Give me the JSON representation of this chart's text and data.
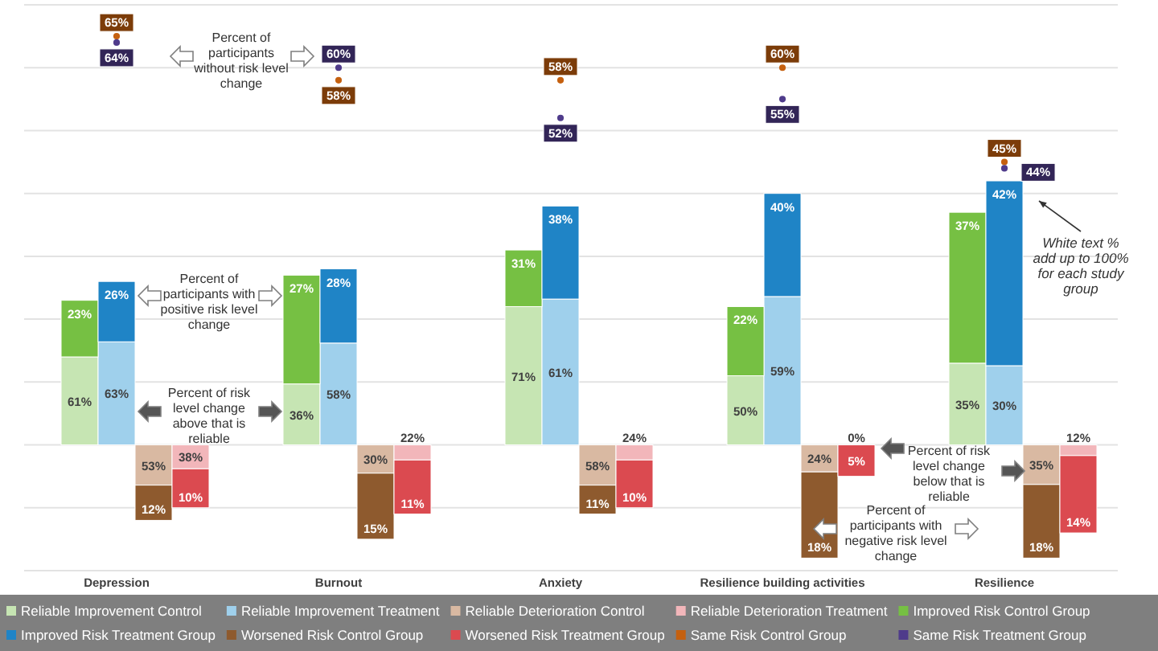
{
  "chart_data": {
    "type": "bar",
    "stacked": true,
    "categories": [
      null,
      null,
      "Depression",
      null,
      null,
      null,
      null,
      null,
      "Burnout",
      null,
      null,
      null,
      null,
      null,
      "Anxiety",
      null,
      null,
      null,
      null,
      null,
      "Resilience building activities",
      null,
      null,
      null,
      null,
      null,
      "Resilience",
      null,
      null,
      null
    ],
    "ylim": [
      -20,
      70
    ],
    "yticks": [
      {
        "value": -20,
        "label": null
      },
      {
        "value": -10,
        "label": null
      },
      {
        "value": 0,
        "label": null
      },
      {
        "value": 10,
        "label": null
      },
      {
        "value": 20,
        "label": null
      },
      {
        "value": 30,
        "label": null
      },
      {
        "value": 40,
        "label": null
      },
      {
        "value": 50,
        "label": null
      },
      {
        "value": 60,
        "label": null
      },
      {
        "value": 70,
        "label": null
      }
    ],
    "grid": "y",
    "legend": "bottom",
    "marker": "circle",
    "series": [
      {
        "name": "Reliable Improvement Control",
        "color": "#c6e5b3",
        "values": [
          null,
          14.0,
          null,
          null,
          null,
          null,
          null,
          9.7,
          null,
          null,
          null,
          null,
          null,
          22.0,
          null,
          null,
          null,
          null,
          null,
          11.0,
          null,
          null,
          null,
          null,
          null,
          13.0,
          null,
          null,
          null,
          null
        ]
      },
      {
        "name": "Reliable Improvement Treatment",
        "color": "#9fd0ec",
        "values": [
          null,
          null,
          16.4,
          null,
          null,
          null,
          null,
          null,
          16.2,
          null,
          null,
          null,
          null,
          null,
          23.2,
          null,
          null,
          null,
          null,
          null,
          23.6,
          null,
          null,
          null,
          null,
          null,
          12.6,
          null,
          null,
          null
        ]
      },
      {
        "name": "Reliable Deterioration Control",
        "color": "#d9b9a2",
        "values": [
          null,
          null,
          null,
          -6.4,
          null,
          null,
          null,
          null,
          null,
          -4.5,
          null,
          null,
          null,
          null,
          null,
          -6.4,
          null,
          null,
          null,
          null,
          null,
          -4.3,
          null,
          null,
          null,
          null,
          null,
          -6.3,
          null,
          null
        ]
      },
      {
        "name": "Reliable Deterioration Treatment",
        "color": "#f2b6ba",
        "values": [
          null,
          null,
          null,
          null,
          -3.8,
          null,
          null,
          null,
          null,
          null,
          -2.4,
          null,
          null,
          null,
          null,
          null,
          -2.4,
          null,
          null,
          null,
          null,
          null,
          0,
          null,
          null,
          null,
          null,
          null,
          -1.7,
          null
        ]
      },
      {
        "name": "Improved Risk Control Group",
        "color": "#76c043",
        "values": [
          null,
          9.0,
          null,
          null,
          null,
          null,
          null,
          17.3,
          null,
          null,
          null,
          null,
          null,
          9.0,
          null,
          null,
          null,
          null,
          null,
          11.0,
          null,
          null,
          null,
          null,
          null,
          24.0,
          null,
          null,
          null,
          null
        ]
      },
      {
        "name": "Improved Risk Treatment Group",
        "color": "#1f84c6",
        "values": [
          null,
          null,
          9.6,
          null,
          null,
          null,
          null,
          null,
          11.8,
          null,
          null,
          null,
          null,
          null,
          14.8,
          null,
          null,
          null,
          null,
          null,
          16.4,
          null,
          null,
          null,
          null,
          null,
          29.4,
          null,
          null,
          null
        ]
      },
      {
        "name": "Worsened Risk Control Group",
        "color": "#8e5a2e",
        "values": [
          null,
          null,
          null,
          -5.6,
          null,
          null,
          null,
          null,
          null,
          -10.5,
          null,
          null,
          null,
          null,
          null,
          -4.6,
          null,
          null,
          null,
          null,
          null,
          -13.7,
          null,
          null,
          null,
          null,
          null,
          -11.7,
          null,
          null
        ]
      },
      {
        "name": "Worsened Risk Treatment Group",
        "color": "#db4a50",
        "values": [
          null,
          null,
          null,
          null,
          -6.2,
          null,
          null,
          null,
          null,
          null,
          -8.6,
          null,
          null,
          null,
          null,
          null,
          -7.6,
          null,
          null,
          null,
          null,
          null,
          -5,
          null,
          null,
          null,
          null,
          null,
          -12.3,
          null
        ]
      },
      {
        "name": "Same Risk Control Group",
        "type": "scatter",
        "color": "#c5600f",
        "values": [
          null,
          null,
          65,
          null,
          null,
          null,
          null,
          null,
          58,
          null,
          null,
          null,
          null,
          null,
          58,
          null,
          null,
          null,
          null,
          null,
          60,
          null,
          null,
          null,
          null,
          null,
          45,
          null,
          null,
          null
        ],
        "value_labels": [
          null,
          null,
          "65%",
          null,
          null,
          null,
          null,
          null,
          "58%",
          null,
          null,
          null,
          null,
          null,
          "58%",
          null,
          null,
          null,
          null,
          null,
          "60%",
          null,
          null,
          null,
          null,
          null,
          "45%",
          null,
          null,
          null
        ]
      },
      {
        "name": "Same Risk Treatment Group",
        "type": "scatter",
        "color": "#4f3b8b",
        "values": [
          null,
          null,
          64,
          null,
          null,
          null,
          null,
          null,
          60,
          null,
          null,
          null,
          null,
          null,
          52,
          null,
          null,
          null,
          null,
          null,
          55,
          null,
          null,
          null,
          null,
          null,
          44,
          null,
          null,
          null
        ],
        "value_labels": [
          null,
          null,
          "64%",
          null,
          null,
          null,
          null,
          null,
          "60%",
          null,
          null,
          null,
          null,
          null,
          "52%",
          null,
          null,
          null,
          null,
          null,
          "55%",
          null,
          null,
          null,
          null,
          null,
          "44%",
          null,
          null,
          null
        ]
      }
    ],
    "annotations": [
      "Percent of participants without risk level change",
      "Percent of participants with positive risk level change",
      "Percent of risk level change above that is reliable",
      "Percent of risk level change below that is reliable",
      "Percent of participants with negative risk level change",
      "White text % add up to 100% for each study group",
      "61%",
      "36%",
      "71%",
      "50%",
      "35%",
      "63%",
      "58%",
      "61%",
      "59%",
      "30%",
      "53%",
      "30%",
      "58%",
      "24%",
      "35%",
      "38%",
      "22%",
      "24%",
      "0%",
      "12%",
      "23%",
      "27%",
      "31%",
      "22%",
      "37%",
      "26%",
      "28%",
      "38%",
      "40%",
      "42%",
      "12%",
      "15%",
      "11%",
      "18%",
      "18%",
      "10%",
      "11%",
      "10%",
      "5%",
      "14%"
    ]
  }
}
